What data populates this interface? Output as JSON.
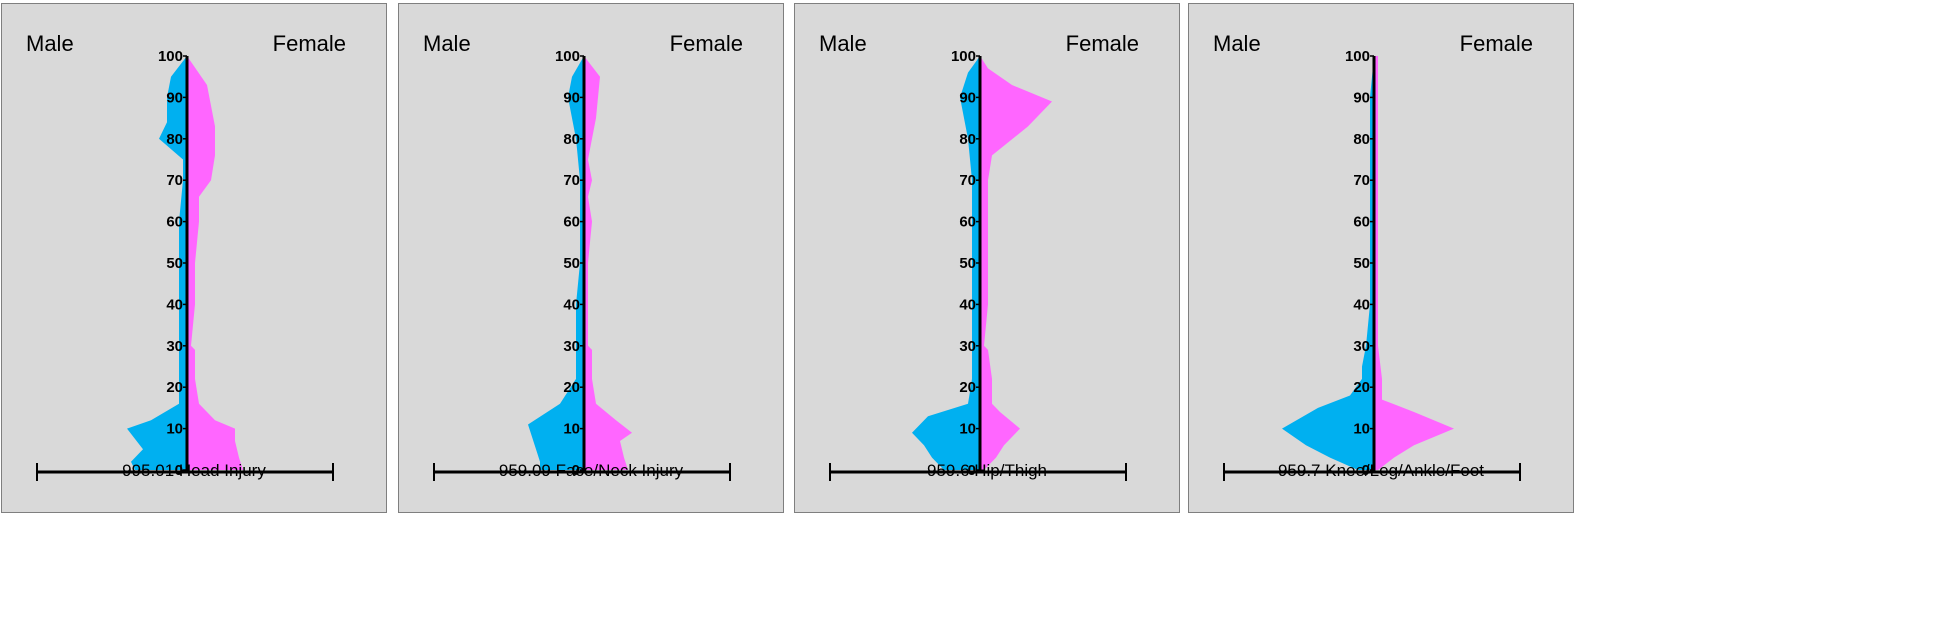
{
  "labels": {
    "left": "Male",
    "right": "Female"
  },
  "colors": {
    "male": "#00b0f0",
    "female": "#ff66ff",
    "axis": "#000000",
    "panel_bg": "#d9d9d9"
  },
  "chart_data": [
    {
      "type": "area",
      "title": "995.01 Head Injury",
      "ylim": [
        0,
        100
      ],
      "yticks": [
        0,
        10,
        20,
        30,
        40,
        50,
        60,
        70,
        80,
        90,
        100
      ],
      "series": [
        {
          "name": "Male",
          "points": [
            [
              0,
              13
            ],
            [
              2,
              14
            ],
            [
              5,
              11
            ],
            [
              10,
              15
            ],
            [
              12,
              9
            ],
            [
              16,
              2
            ],
            [
              22,
              2
            ],
            [
              30,
              2
            ],
            [
              40,
              2
            ],
            [
              50,
              2
            ],
            [
              60,
              2
            ],
            [
              70,
              1
            ],
            [
              75,
              1
            ],
            [
              80,
              7
            ],
            [
              84,
              5
            ],
            [
              90,
              5
            ],
            [
              95,
              4
            ],
            [
              100,
              0
            ]
          ]
        },
        {
          "name": "Female",
          "points": [
            [
              0,
              14
            ],
            [
              3,
              13
            ],
            [
              7,
              12
            ],
            [
              10,
              12
            ],
            [
              12,
              7
            ],
            [
              16,
              3
            ],
            [
              22,
              2
            ],
            [
              29,
              2
            ],
            [
              30,
              1
            ],
            [
              40,
              2
            ],
            [
              50,
              2
            ],
            [
              60,
              3
            ],
            [
              66,
              3
            ],
            [
              70,
              6
            ],
            [
              76,
              7
            ],
            [
              83,
              7
            ],
            [
              93,
              5
            ],
            [
              100,
              0
            ]
          ]
        }
      ]
    },
    {
      "type": "area",
      "title": "959.09 Face/Neck Injury",
      "ylim": [
        0,
        100
      ],
      "yticks": [
        0,
        10,
        20,
        30,
        40,
        50,
        60,
        70,
        80,
        90,
        100
      ],
      "series": [
        {
          "name": "Male",
          "points": [
            [
              0,
              11
            ],
            [
              2,
              11
            ],
            [
              5,
              12
            ],
            [
              11,
              14
            ],
            [
              16,
              6
            ],
            [
              22,
              2
            ],
            [
              30,
              2
            ],
            [
              35,
              2
            ],
            [
              40,
              2
            ],
            [
              50,
              1
            ],
            [
              60,
              1
            ],
            [
              70,
              1
            ],
            [
              80,
              2
            ],
            [
              90,
              4
            ],
            [
              95,
              3
            ],
            [
              100,
              0
            ]
          ]
        },
        {
          "name": "Female",
          "points": [
            [
              0,
              11
            ],
            [
              3,
              10
            ],
            [
              7,
              9
            ],
            [
              9,
              12
            ],
            [
              12,
              8
            ],
            [
              16,
              3
            ],
            [
              22,
              2
            ],
            [
              29,
              2
            ],
            [
              30,
              1
            ],
            [
              40,
              1
            ],
            [
              50,
              1
            ],
            [
              60,
              2
            ],
            [
              66,
              1
            ],
            [
              70,
              2
            ],
            [
              75,
              1
            ],
            [
              80,
              2
            ],
            [
              85,
              3
            ],
            [
              95,
              4
            ],
            [
              100,
              0
            ]
          ]
        }
      ]
    },
    {
      "type": "area",
      "title": "959.6 Hip/Thigh",
      "ylim": [
        0,
        100
      ],
      "yticks": [
        0,
        10,
        20,
        30,
        40,
        50,
        60,
        70,
        80,
        90,
        100
      ],
      "series": [
        {
          "name": "Male",
          "points": [
            [
              0,
              9
            ],
            [
              3,
              12
            ],
            [
              6,
              14
            ],
            [
              9,
              17
            ],
            [
              13,
              13
            ],
            [
              16,
              3
            ],
            [
              22,
              2
            ],
            [
              30,
              2
            ],
            [
              40,
              2
            ],
            [
              50,
              2
            ],
            [
              60,
              2
            ],
            [
              70,
              2
            ],
            [
              80,
              3
            ],
            [
              90,
              5
            ],
            [
              96,
              3
            ],
            [
              100,
              0
            ]
          ]
        },
        {
          "name": "Female",
          "points": [
            [
              0,
              1
            ],
            [
              3,
              4
            ],
            [
              6,
              6
            ],
            [
              10,
              10
            ],
            [
              14,
              5
            ],
            [
              16,
              3
            ],
            [
              22,
              3
            ],
            [
              29,
              2
            ],
            [
              30,
              1
            ],
            [
              40,
              2
            ],
            [
              50,
              2
            ],
            [
              60,
              2
            ],
            [
              66,
              2
            ],
            [
              70,
              2
            ],
            [
              76,
              3
            ],
            [
              83,
              12
            ],
            [
              89,
              18
            ],
            [
              93,
              8
            ],
            [
              97,
              2
            ],
            [
              100,
              0
            ]
          ]
        }
      ]
    },
    {
      "type": "area",
      "title": "959.7 Knee/Leg/Ankle/Foot",
      "ylim": [
        0,
        100
      ],
      "yticks": [
        0,
        10,
        20,
        30,
        40,
        50,
        60,
        70,
        80,
        90,
        100
      ],
      "series": [
        {
          "name": "Male",
          "points": [
            [
              0,
              4
            ],
            [
              3,
              11
            ],
            [
              6,
              17
            ],
            [
              10,
              23
            ],
            [
              15,
              14
            ],
            [
              18,
              6
            ],
            [
              22,
              3
            ],
            [
              25,
              3
            ],
            [
              30,
              2
            ],
            [
              40,
              1
            ],
            [
              50,
              1
            ],
            [
              60,
              1
            ],
            [
              70,
              1
            ],
            [
              80,
              1
            ],
            [
              90,
              1
            ],
            [
              100,
              0
            ]
          ]
        },
        {
          "name": "Female",
          "points": [
            [
              0,
              1
            ],
            [
              3,
              5
            ],
            [
              6,
              10
            ],
            [
              10,
              20
            ],
            [
              14,
              10
            ],
            [
              17,
              2
            ],
            [
              22,
              2
            ],
            [
              30,
              1
            ],
            [
              40,
              1
            ],
            [
              50,
              1
            ],
            [
              60,
              1
            ],
            [
              70,
              1
            ],
            [
              80,
              1
            ],
            [
              90,
              1
            ],
            [
              100,
              1
            ]
          ]
        }
      ]
    }
  ]
}
